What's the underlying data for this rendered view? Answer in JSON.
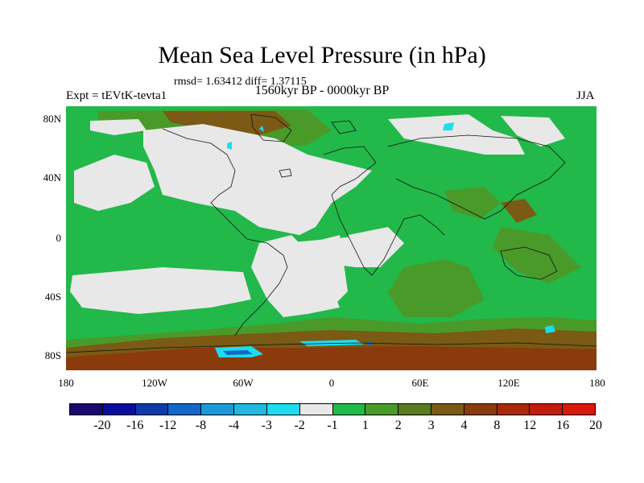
{
  "plot": {
    "title": "Mean Sea Level Pressure (in hPa)",
    "stats": "rmsd= 1.63412 diff= 1.37115",
    "period": "1560kyr BP - 0000kyr BP",
    "experiment": "Expt = tEVtK-tevta1",
    "season": "JJA"
  },
  "axes": {
    "lat_labels": [
      "80N",
      "40N",
      "0",
      "40S",
      "80S"
    ],
    "lon_labels": [
      "180",
      "120W",
      "60W",
      "0",
      "60E",
      "120E",
      "180"
    ]
  },
  "colorbar": {
    "colors": [
      "#1a0a6e",
      "#0c0c9a",
      "#0c3aa8",
      "#1268c8",
      "#1c9ad8",
      "#22b8e0",
      "#1edcf0",
      "#e8e8e8",
      "#23b84a",
      "#4a9a2a",
      "#5a7a1e",
      "#7a5a14",
      "#8a3a0c",
      "#a82a0a",
      "#c01e0a",
      "#d8180a"
    ],
    "labels": [
      "-20",
      "-16",
      "-12",
      "-8",
      "-4",
      "-3",
      "-2",
      "-1",
      "1",
      "2",
      "3",
      "4",
      "8",
      "12",
      "16",
      "20"
    ]
  },
  "map_colors": {
    "ocean_base": "#23b84a",
    "near_zero": "#e8e8e8",
    "moderate": "#4a9a2a",
    "high": "#7a5a14",
    "very_high": "#8a3a0c",
    "low": "#1edcf0",
    "very_low": "#1268c8"
  }
}
